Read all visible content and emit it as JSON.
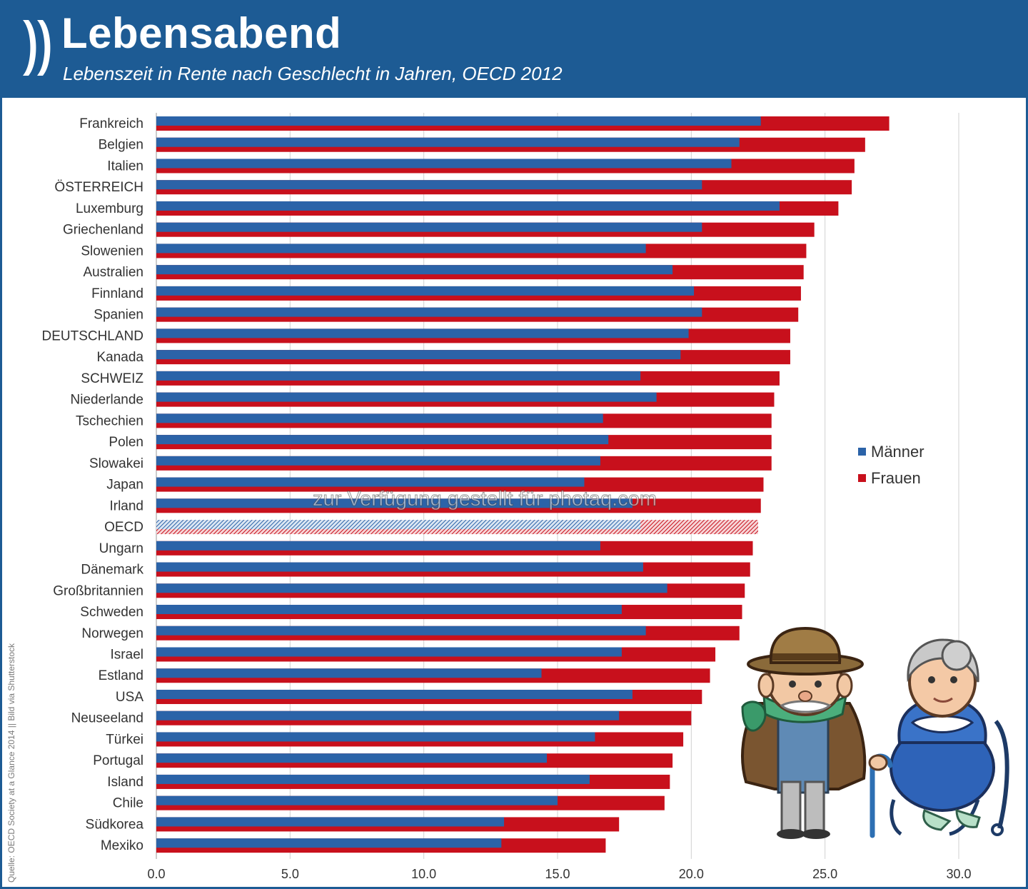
{
  "header": {
    "title": "Lebensabend",
    "subtitle": "Lebenszeit in Rente nach Geschlecht in Jahren, OECD 2012"
  },
  "source_note": "Quelle: OECD Society at a Glance 2014 || Bild via Shutterstock",
  "watermark": "zur Verfügung gestellt für photaq.com",
  "colors": {
    "header_bg": "#1d5b94",
    "maenner": "#2b63a8",
    "frauen": "#c8101c",
    "grid": "#d0d0d0"
  },
  "chart_data": {
    "type": "bar",
    "orientation": "horizontal",
    "title": "Lebensabend",
    "subtitle": "Lebenszeit in Rente nach Geschlecht in Jahren, OECD 2012",
    "xlim": [
      0,
      30
    ],
    "xticks": [
      "0.0",
      "5.0",
      "10.0",
      "15.0",
      "20.0",
      "25.0",
      "30.0"
    ],
    "grid": "vertical",
    "legend_position": "right",
    "highlight_category": "OECD",
    "categories": [
      "Frankreich",
      "Belgien",
      "Italien",
      "ÖSTERREICH",
      "Luxemburg",
      "Griechenland",
      "Slowenien",
      "Australien",
      "Finnland",
      "Spanien",
      "DEUTSCHLAND",
      "Kanada",
      "SCHWEIZ",
      "Niederlande",
      "Tschechien",
      "Polen",
      "Slowakei",
      "Japan",
      "Irland",
      "OECD",
      "Ungarn",
      "Dänemark",
      "Großbritannien",
      "Schweden",
      "Norwegen",
      "Israel",
      "Estland",
      "USA",
      "Neuseeland",
      "Türkei",
      "Portugal",
      "Island",
      "Chile",
      "Südkorea",
      "Mexiko"
    ],
    "series": [
      {
        "name": "Männer",
        "color": "#2b63a8",
        "values": [
          22.6,
          21.8,
          21.5,
          20.4,
          23.3,
          20.4,
          18.3,
          19.3,
          20.1,
          20.4,
          19.9,
          19.6,
          18.1,
          18.7,
          16.7,
          16.9,
          16.6,
          16.0,
          17.8,
          18.1,
          16.6,
          18.2,
          19.1,
          17.4,
          18.3,
          17.4,
          14.4,
          17.8,
          17.3,
          16.4,
          14.6,
          16.2,
          15.0,
          13.0,
          12.9
        ]
      },
      {
        "name": "Frauen",
        "color": "#c8101c",
        "values": [
          27.4,
          26.5,
          26.1,
          26.0,
          25.5,
          24.6,
          24.3,
          24.2,
          24.1,
          24.0,
          23.7,
          23.7,
          23.3,
          23.1,
          23.0,
          23.0,
          23.0,
          22.7,
          22.6,
          22.5,
          22.3,
          22.2,
          22.0,
          21.9,
          21.8,
          20.9,
          20.7,
          20.4,
          20.0,
          19.7,
          19.3,
          19.2,
          19.0,
          17.3,
          16.8
        ]
      }
    ]
  }
}
